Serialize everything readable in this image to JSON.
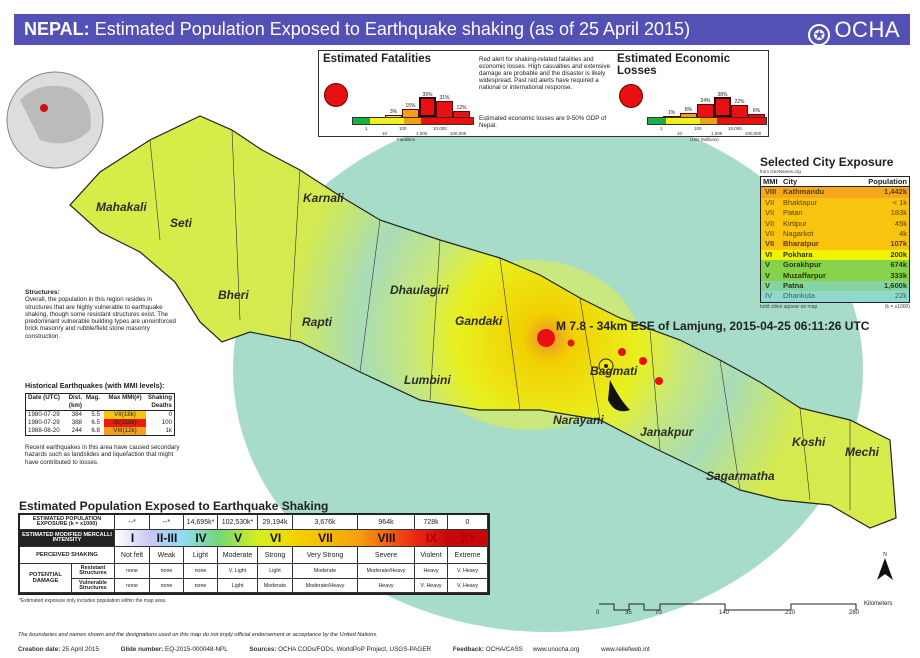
{
  "header": {
    "country": "NEPAL:",
    "title": "Estimated Population Exposed to Earthquake shaking (as of 25 April 2015)",
    "logo_text": "OCHA",
    "logo_icon": "un-emblem-icon",
    "background": "#5350b6"
  },
  "map": {
    "districts": [
      "Mahakali",
      "Seti",
      "Karnali",
      "Bheri",
      "Rapti",
      "Dhaulagiri",
      "Gandaki",
      "Lumbini",
      "Bagmati",
      "Narayani",
      "Janakpur",
      "Sagarmatha",
      "Koshi",
      "Mechi"
    ],
    "epicenter_label": "M 7.8 - 34km ESE of Lamjung, 2015-04-25 06:11:26 UTC",
    "scale": {
      "labels": [
        "0",
        "35",
        "70",
        "140",
        "210",
        "280"
      ],
      "unit": "Kilometers"
    },
    "north_label": "N",
    "colors": {
      "outer_shaking": "#a6dcc8",
      "west": "#d6ea4a",
      "center": "#f2f000",
      "epicenter": "#e8a020"
    }
  },
  "fatalities": {
    "title": "Estimated Fatalities",
    "alert_color": "#e81010",
    "description": "Red alert for shaking-related fatalities and economic losses. High casualties and extensive damage are probable and the disaster is likely widespread. Past red alerts have required a national or international response.",
    "econ_note": "Estimated economic losses are 9-50% GDP of Nepal.",
    "histogram": [
      "3%",
      "15%",
      "39%",
      "31%",
      "12%"
    ],
    "histogram_values": [
      3,
      15,
      39,
      31,
      12
    ],
    "axis_ticks": [
      "1",
      "10",
      "100",
      "1,000",
      "10,000",
      "100,000"
    ],
    "axis_label": "Fatalities"
  },
  "economic": {
    "title": "Estimated Economic Losses",
    "histogram": [
      "1%",
      "8%",
      "24%",
      "38%",
      "22%",
      "6%"
    ],
    "histogram_values": [
      1,
      8,
      24,
      38,
      22,
      6
    ],
    "axis_ticks": [
      "1",
      "10",
      "100",
      "1,000",
      "10,000",
      "100,000"
    ],
    "axis_label": "USD (Millions)"
  },
  "city_exposure": {
    "title": "Selected City Exposure",
    "source": "from GeoNames.org",
    "headers": [
      "MMI",
      "City",
      "Population"
    ],
    "rows": [
      {
        "mmi": "VIII",
        "city": "Kathmandu",
        "pop": "1,442k",
        "bold": true,
        "color": "#f5a81c"
      },
      {
        "mmi": "VII",
        "city": "Bhaktapur",
        "pop": "< 1k",
        "bold": false,
        "color": "#f8c410"
      },
      {
        "mmi": "VII",
        "city": "Patan",
        "pop": "183k",
        "bold": false,
        "color": "#f8c410"
      },
      {
        "mmi": "VII",
        "city": "Kirtipur",
        "pop": "45k",
        "bold": false,
        "color": "#f8c410"
      },
      {
        "mmi": "VII",
        "city": "Nagarkot",
        "pop": "4k",
        "bold": false,
        "color": "#f8c410"
      },
      {
        "mmi": "VII",
        "city": "Bharatpur",
        "pop": "107k",
        "bold": true,
        "color": "#f8c410"
      },
      {
        "mmi": "VI",
        "city": "Pokhara",
        "pop": "200k",
        "bold": true,
        "color": "#f2f200"
      },
      {
        "mmi": "V",
        "city": "Gorakhpur",
        "pop": "674k",
        "bold": true,
        "color": "#86d24c"
      },
      {
        "mmi": "V",
        "city": "Muzaffarpur",
        "pop": "333k",
        "bold": true,
        "color": "#86d24c"
      },
      {
        "mmi": "V",
        "city": "Patna",
        "pop": "1,600k",
        "bold": true,
        "color": "#86d2a0"
      },
      {
        "mmi": "IV",
        "city": "Dhankuta",
        "pop": "22k",
        "bold": false,
        "color": "#8ed8cc"
      }
    ],
    "footnote_left": "bold cities appear on map",
    "footnote_right": "(k = x1000)"
  },
  "structures": {
    "title": "Structures:",
    "text": "Overall, the population in this region resides in structures that are highly vulnerable to earthquake shaking, though some resistant structures exist. The predominant vulnerable building types are unreinforced brick masonry and rubble/field stone masonry construction."
  },
  "historical": {
    "title": "Historical Earthquakes (with MMI levels):",
    "headers": {
      "date": "Date (UTC)",
      "dist": "Dist. (km)",
      "mag": "Mag.",
      "mmi": "Max MMI(#)",
      "deaths": "Shaking Deaths"
    },
    "rows": [
      {
        "date": "1980-07-29",
        "dist": "384",
        "mag": "5.5",
        "mmi": "VII(18k)",
        "deaths": "0",
        "color": "#f8c410"
      },
      {
        "date": "1980-07-29",
        "dist": "388",
        "mag": "6.5",
        "mmi": "IX(318k)",
        "deaths": "100",
        "color": "#e81c10"
      },
      {
        "date": "1988-08-20",
        "dist": "244",
        "mag": "6.8",
        "mmi": "VIII(12k)",
        "deaths": "1k",
        "color": "#f5a01c"
      }
    ],
    "note": "Recent earthquakes in this area have caused secondary hazards such as landslides and liquefaction that might have contributed to losses."
  },
  "exposure_table": {
    "title": "Estimated Population Exposed to Earthquake Shaking",
    "row_labels": {
      "exposure": "ESTIMATED POPULATION EXPOSURE (k = x1000)",
      "intensity": "ESTIMATED MODIFIED MERCALLI INTENSITY",
      "shaking": "PERCEIVED SHAKING",
      "damage": "POTENTIAL DAMAGE",
      "resistant": "Resistant Structures",
      "vulnerable": "Vulnerable Structures"
    },
    "columns": [
      {
        "exposure": "--*",
        "mmi": "I",
        "shaking": "Not felt",
        "resistant": "none",
        "vulnerable": "none",
        "color": "#ffffff"
      },
      {
        "exposure": "--*",
        "mmi": "II-III",
        "shaking": "Weak",
        "resistant": "none",
        "vulnerable": "none",
        "color": "#c8c8f4"
      },
      {
        "exposure": "14,695k*",
        "mmi": "IV",
        "shaking": "Light",
        "resistant": "none",
        "vulnerable": "none",
        "color": "#8edcf2"
      },
      {
        "exposure": "102,530k*",
        "mmi": "V",
        "shaking": "Moderate",
        "resistant": "V. Light",
        "vulnerable": "Light",
        "color": "#72d67a"
      },
      {
        "exposure": "29,194k",
        "mmi": "VI",
        "shaking": "Strong",
        "resistant": "Light",
        "vulnerable": "Moderate",
        "color": "#d4f020"
      },
      {
        "exposure": "3,676k",
        "mmi": "VII",
        "shaking": "Very Strong",
        "resistant": "Moderate",
        "vulnerable": "Moderate/Heavy",
        "color": "#f6d400"
      },
      {
        "exposure": "964k",
        "mmi": "VIII",
        "shaking": "Severe",
        "resistant": "Moderate/Heavy",
        "vulnerable": "Heavy",
        "color": "#f5a010"
      },
      {
        "exposure": "728k",
        "mmi": "IX",
        "shaking": "Violent",
        "resistant": "Heavy",
        "vulnerable": "V. Heavy",
        "color": "#ea2a14"
      },
      {
        "exposure": "0",
        "mmi": "X+",
        "shaking": "Extreme",
        "resistant": "V. Heavy",
        "vulnerable": "V. Heavy",
        "color": "#c80808"
      }
    ],
    "footnote": "*Estimated exposure only includes population within the map area."
  },
  "footer": {
    "disclaimer": "The boundaries and names shown and the designations used on this map do not imply official endorsement or acceptance by the United Nations.",
    "creation_label": "Creation date:",
    "creation_value": "25 April 2015",
    "glide_label": "Glide number:",
    "glide_value": "EQ-2015-000048-NPL",
    "sources_label": "Sources:",
    "sources_value": "OCHA CODs/FODs, WorldPoP Project, USGS-PAGER",
    "feedback_label": "Feedback:",
    "feedback_value": "OCHA/CASS",
    "website1": "www.unocha.org",
    "website2": "www.reliefweb.int"
  }
}
